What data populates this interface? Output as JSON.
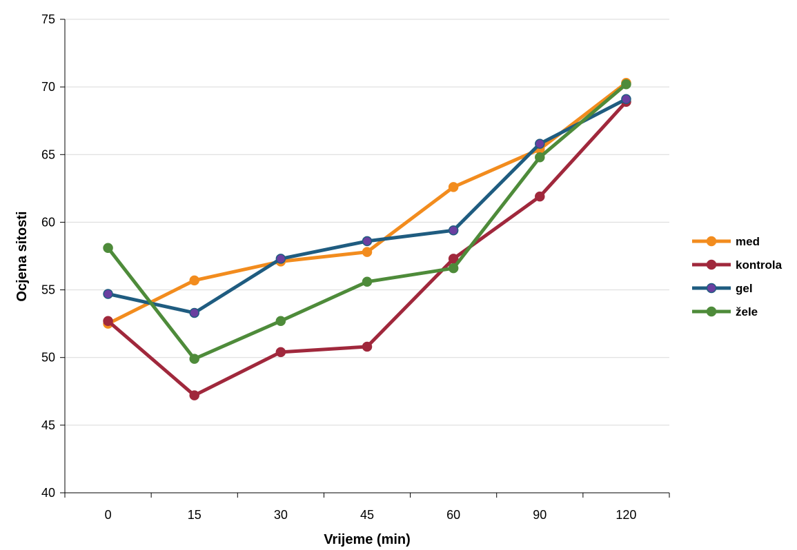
{
  "chart_data": {
    "type": "line",
    "title": "",
    "xlabel": "Vrijeme (min)",
    "ylabel": "Ocjena sitosti",
    "categories": [
      "0",
      "15",
      "30",
      "45",
      "60",
      "90",
      "120"
    ],
    "ylim": [
      40,
      75
    ],
    "yticks": [
      40,
      45,
      50,
      55,
      60,
      65,
      70,
      75
    ],
    "grid": "horizontal",
    "legend_position": "right",
    "series": [
      {
        "name": "med",
        "color": "#F28C1E",
        "marker_color": "#F28C1E",
        "values": [
          52.5,
          55.7,
          57.1,
          57.8,
          62.6,
          65.4,
          70.3
        ]
      },
      {
        "name": "kontrola",
        "color": "#A0283C",
        "marker_color": "#A0283C",
        "values": [
          52.7,
          47.2,
          50.4,
          50.8,
          57.3,
          61.9,
          68.9
        ]
      },
      {
        "name": "gel",
        "color": "#1F5C80",
        "marker_color": "#6A3FA0",
        "values": [
          54.7,
          53.3,
          57.3,
          58.6,
          59.4,
          65.8,
          69.1
        ]
      },
      {
        "name": "žele",
        "color": "#4E8B3A",
        "marker_color": "#4E8B3A",
        "values": [
          58.1,
          49.9,
          52.7,
          55.6,
          56.6,
          64.8,
          70.2
        ]
      }
    ]
  }
}
